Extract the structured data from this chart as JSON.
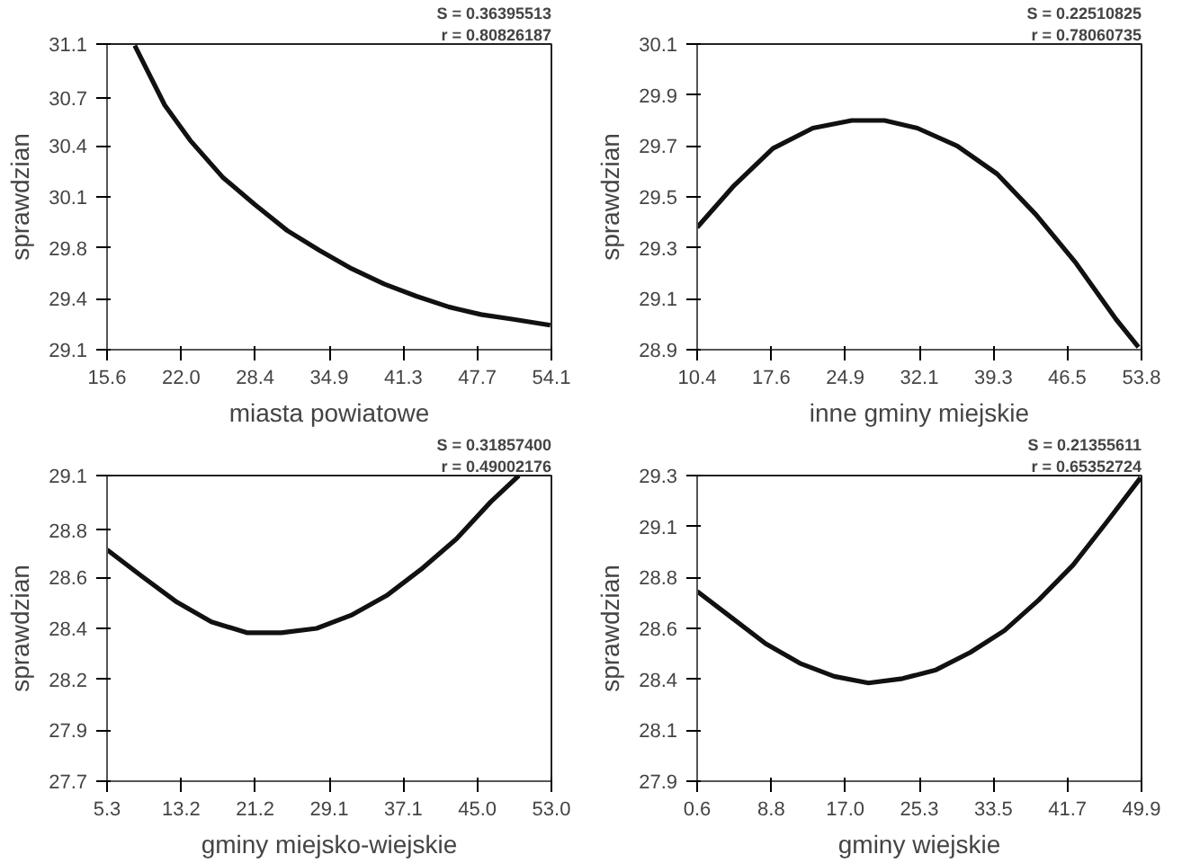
{
  "chart_data": [
    {
      "type": "line",
      "xlabel": "miasta powiatowe",
      "ylabel": "sprawdzian",
      "annotations": [
        "S = 0.36395513",
        "r = 0.80826187"
      ],
      "grid": false,
      "marker": "none",
      "line_style": "solid",
      "xlim": [
        15.6,
        54.1
      ],
      "ylim": [
        29.1,
        31.1
      ],
      "xticks": [
        {
          "value": 15.6,
          "label": "15.6"
        },
        {
          "value": 22.017,
          "label": "22.0"
        },
        {
          "value": 28.433,
          "label": "28.4"
        },
        {
          "value": 34.85,
          "label": "34.9"
        },
        {
          "value": 41.267,
          "label": "41.3"
        },
        {
          "value": 47.683,
          "label": "47.7"
        },
        {
          "value": 54.1,
          "label": "54.1"
        }
      ],
      "yticks": [
        {
          "value": 29.1,
          "label": "29.1"
        },
        {
          "value": 29.433,
          "label": "29.4"
        },
        {
          "value": 29.767,
          "label": "29.8"
        },
        {
          "value": 30.1,
          "label": "30.1"
        },
        {
          "value": 30.433,
          "label": "30.4"
        },
        {
          "value": 30.749,
          "label": "30.7"
        },
        {
          "value": 31.1,
          "label": "31.1"
        }
      ],
      "series": [
        {
          "color": "#111111",
          "x": [
            18.0,
            20.6,
            22.8,
            25.6,
            28.4,
            31.2,
            34.0,
            36.8,
            39.6,
            42.4,
            45.2,
            48.0,
            50.7,
            54.0
          ],
          "values": [
            31.09,
            30.7,
            30.47,
            30.23,
            30.05,
            29.88,
            29.75,
            29.63,
            29.53,
            29.45,
            29.38,
            29.33,
            29.3,
            29.26
          ]
        }
      ]
    },
    {
      "type": "line",
      "xlabel": "inne gminy miejskie",
      "ylabel": "sprawdzian",
      "annotations": [
        "S = 0.22510825",
        "r = 0.78060735"
      ],
      "grid": false,
      "marker": "none",
      "line_style": "solid",
      "xlim": [
        10.4,
        53.8
      ],
      "ylim": [
        28.9,
        30.1
      ],
      "xticks": [
        {
          "value": 10.4,
          "label": "10.4"
        },
        {
          "value": 17.633,
          "label": "17.6"
        },
        {
          "value": 24.867,
          "label": "24.9"
        },
        {
          "value": 32.1,
          "label": "32.1"
        },
        {
          "value": 39.333,
          "label": "39.3"
        },
        {
          "value": 46.549,
          "label": "46.5"
        },
        {
          "value": 53.8,
          "label": "53.8"
        }
      ],
      "yticks": [
        28.9,
        29.1,
        29.3,
        29.5,
        29.7,
        29.9,
        30.1
      ],
      "series": [
        {
          "color": "#111111",
          "x": [
            10.4,
            13.9,
            17.8,
            21.7,
            25.5,
            28.7,
            31.9,
            35.8,
            39.7,
            43.5,
            47.4,
            51.3,
            53.5
          ],
          "values": [
            29.38,
            29.54,
            29.69,
            29.77,
            29.8,
            29.8,
            29.77,
            29.7,
            29.59,
            29.43,
            29.24,
            29.02,
            28.91
          ]
        }
      ]
    },
    {
      "type": "line",
      "xlabel": "gminy miejsko-wiejskie",
      "ylabel": "sprawdzian",
      "annotations": [
        "S = 0.31857400",
        "r = 0.49002176"
      ],
      "grid": false,
      "marker": "none",
      "line_style": "solid",
      "xlim": [
        5.3,
        53.0
      ],
      "ylim": [
        27.7,
        29.1
      ],
      "xticks": [
        {
          "value": 5.3,
          "label": "5.3"
        },
        {
          "value": 13.25,
          "label": "13.2"
        },
        {
          "value": 21.2,
          "label": "21.2"
        },
        {
          "value": 29.15,
          "label": "29.1"
        },
        {
          "value": 37.1,
          "label": "37.1"
        },
        {
          "value": 45.05,
          "label": "45.0"
        },
        {
          "value": 53.0,
          "label": "53.0"
        }
      ],
      "yticks": [
        {
          "value": 27.7,
          "label": "27.7"
        },
        {
          "value": 27.933,
          "label": "27.9"
        },
        {
          "value": 28.167,
          "label": "28.2"
        },
        {
          "value": 28.4,
          "label": "28.4"
        },
        {
          "value": 28.633,
          "label": "28.6"
        },
        {
          "value": 28.849,
          "label": "28.8"
        },
        {
          "value": 29.1,
          "label": "29.1"
        }
      ],
      "series": [
        {
          "color": "#111111",
          "x": [
            5.3,
            9.0,
            12.8,
            16.5,
            20.3,
            24.0,
            27.8,
            31.5,
            35.3,
            39.0,
            42.8,
            46.5,
            49.5
          ],
          "values": [
            28.76,
            28.64,
            28.52,
            28.43,
            28.38,
            28.38,
            28.4,
            28.46,
            28.55,
            28.67,
            28.81,
            28.98,
            29.1
          ]
        }
      ]
    },
    {
      "type": "line",
      "xlabel": "gminy wiejskie",
      "ylabel": "sprawdzian",
      "annotations": [
        "S = 0.21355611",
        "r = 0.65352724"
      ],
      "grid": false,
      "marker": "none",
      "line_style": "solid",
      "xlim": [
        0.6,
        49.9
      ],
      "ylim": [
        27.9,
        29.3
      ],
      "xticks": [
        {
          "value": 0.6,
          "label": "0.6"
        },
        {
          "value": 8.817,
          "label": "8.8"
        },
        {
          "value": 17.033,
          "label": "17.0"
        },
        {
          "value": 25.25,
          "label": "25.3"
        },
        {
          "value": 33.467,
          "label": "33.5"
        },
        {
          "value": 41.683,
          "label": "41.7"
        },
        {
          "value": 49.9,
          "label": "49.9"
        }
      ],
      "yticks": [
        {
          "value": 27.9,
          "label": "27.9"
        },
        {
          "value": 28.133,
          "label": "28.1"
        },
        {
          "value": 28.367,
          "label": "28.4"
        },
        {
          "value": 28.6,
          "label": "28.6"
        },
        {
          "value": 28.833,
          "label": "28.8"
        },
        {
          "value": 29.067,
          "label": "29.1"
        },
        {
          "value": 29.3,
          "label": "29.3"
        }
      ],
      "series": [
        {
          "color": "#111111",
          "x": [
            0.6,
            4.4,
            8.2,
            12.0,
            15.8,
            19.6,
            23.4,
            27.1,
            30.9,
            34.7,
            38.5,
            42.3,
            46.1,
            49.8
          ],
          "values": [
            28.77,
            28.65,
            28.53,
            28.44,
            28.38,
            28.35,
            28.37,
            28.41,
            28.49,
            28.59,
            28.73,
            28.89,
            29.09,
            29.29
          ]
        }
      ]
    }
  ]
}
